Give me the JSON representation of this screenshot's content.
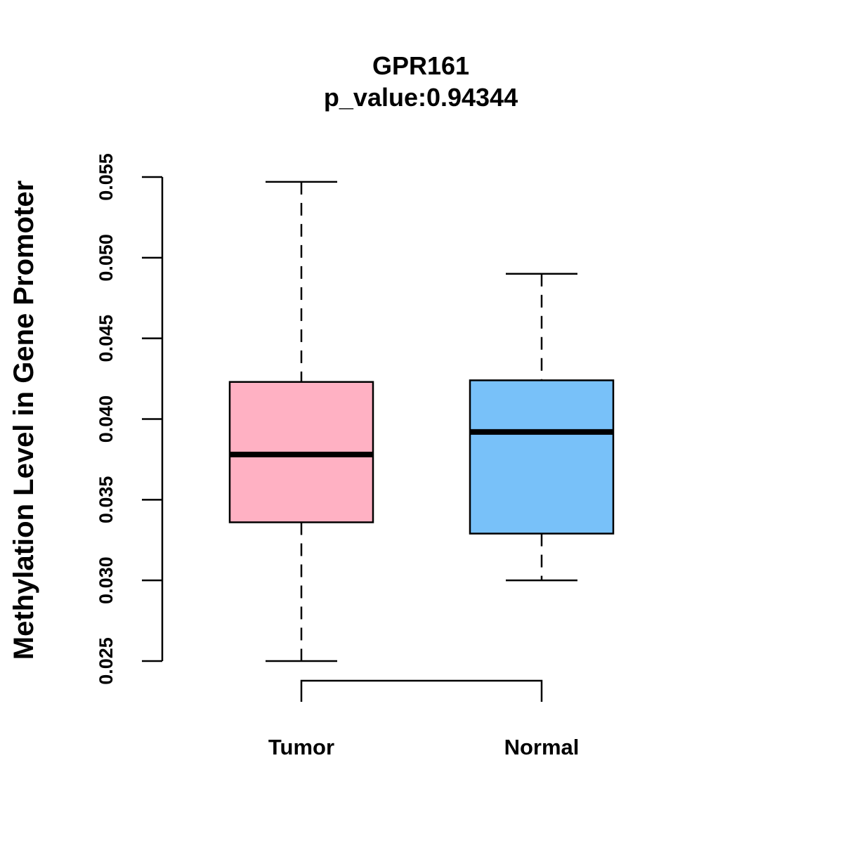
{
  "chart_data": {
    "type": "box",
    "title": "GPR161",
    "subtitle": "p_value:0.94344",
    "ylabel": "Methylation Level in Gene Promoter",
    "xlabel": "",
    "ylim": [
      0.025,
      0.055
    ],
    "yticks": [
      "0.025",
      "0.030",
      "0.035",
      "0.040",
      "0.045",
      "0.050",
      "0.055"
    ],
    "categories": [
      "Tumor",
      "Normal"
    ],
    "series": [
      {
        "name": "Tumor",
        "min": 0.025,
        "q1": 0.0336,
        "median": 0.0378,
        "q3": 0.0423,
        "max": 0.0547,
        "color": "#FFB1C3"
      },
      {
        "name": "Normal",
        "min": 0.03,
        "q1": 0.0329,
        "median": 0.0392,
        "q3": 0.0424,
        "max": 0.049,
        "color": "#78C1F9"
      }
    ],
    "significance_bracket": {
      "from": "Tumor",
      "to": "Normal"
    }
  }
}
